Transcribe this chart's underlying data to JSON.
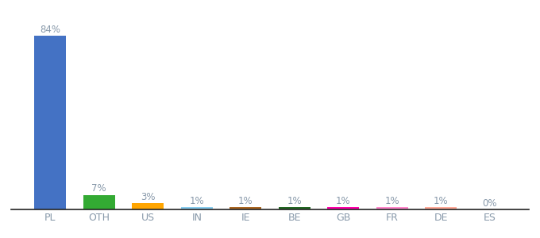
{
  "categories": [
    "PL",
    "OTH",
    "US",
    "IN",
    "IE",
    "BE",
    "GB",
    "FR",
    "DE",
    "ES"
  ],
  "values": [
    84,
    7,
    3,
    1,
    1,
    1,
    1,
    1,
    1,
    0
  ],
  "labels": [
    "84%",
    "7%",
    "3%",
    "1%",
    "1%",
    "1%",
    "1%",
    "1%",
    "1%",
    "0%"
  ],
  "colors": [
    "#4472C4",
    "#33AA33",
    "#FFA500",
    "#88CCEE",
    "#AA6622",
    "#226622",
    "#FF00AA",
    "#FF88CC",
    "#FFAA99",
    "#CCCCCC"
  ],
  "ylim": [
    0,
    92
  ],
  "background_color": "#ffffff",
  "label_color": "#8899AA",
  "label_fontsize": 8.5,
  "tick_fontsize": 9,
  "bar_width": 0.65
}
